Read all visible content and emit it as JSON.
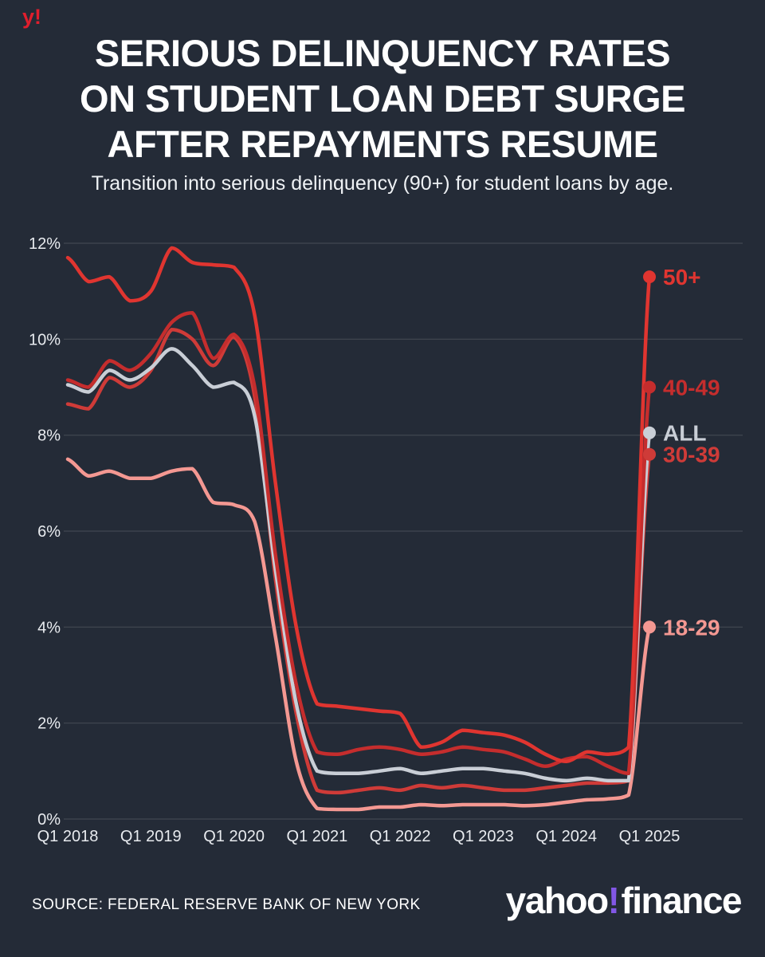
{
  "page": {
    "background": "#242b37",
    "top_logo": "y!",
    "top_logo_color": "#e01e2d",
    "title_lines": [
      "SERIOUS DELINQUENCY RATES",
      "ON STUDENT LOAN DEBT SURGE",
      "AFTER REPAYMENTS RESUME"
    ],
    "subtitle": "Transition into serious delinquency (90+) for student loans by age.",
    "source": "SOURCE: FEDERAL RESERVE BANK OF NEW YORK",
    "brand": {
      "yahoo": "yahoo",
      "bang": "!",
      "finance": "finance",
      "bang_color": "#8257e6"
    }
  },
  "chart_data": {
    "type": "line",
    "title": "Transition into serious delinquency (90+) for student loans by age.",
    "unit": "%",
    "frequency": "quarterly",
    "x_range": [
      "Q1 2018",
      "Q1 2025"
    ],
    "ylim": [
      0,
      12
    ],
    "grid": true,
    "legend_position": "right-of-line-ends",
    "y_ticks": {
      "values": [
        0,
        2,
        4,
        6,
        8,
        10,
        12
      ],
      "labels": [
        "0%",
        "2%",
        "4%",
        "6%",
        "8%",
        "10%",
        "12%"
      ]
    },
    "x_ticks": {
      "indices": [
        0,
        4,
        8,
        12,
        16,
        20,
        24,
        28
      ],
      "labels": [
        "Q1 2018",
        "Q1 2019",
        "Q1 2020",
        "Q1 2021",
        "Q1 2022",
        "Q1 2023",
        "Q1 2024",
        "Q1 2025"
      ]
    },
    "series": [
      {
        "name": "50+",
        "color": "#e03530",
        "values": [
          11.7,
          11.2,
          11.3,
          10.8,
          11.0,
          11.9,
          11.6,
          11.55,
          11.5,
          10.5,
          7.0,
          4.0,
          2.4,
          2.35,
          2.3,
          2.25,
          2.2,
          1.5,
          1.6,
          1.85,
          1.8,
          1.75,
          1.6,
          1.35,
          1.2,
          1.4,
          1.35,
          1.5,
          11.3
        ]
      },
      {
        "name": "40-49",
        "color": "#c52d2d",
        "values": [
          9.15,
          9.0,
          9.55,
          9.35,
          9.7,
          10.35,
          10.55,
          9.6,
          10.1,
          9.0,
          5.5,
          2.8,
          1.4,
          1.35,
          1.45,
          1.5,
          1.45,
          1.35,
          1.4,
          1.5,
          1.45,
          1.4,
          1.25,
          1.1,
          1.25,
          1.3,
          1.1,
          0.95,
          9.0
        ]
      },
      {
        "name": "ALL",
        "color": "#c9ced6",
        "values": [
          9.05,
          8.9,
          9.35,
          9.15,
          9.4,
          9.8,
          9.45,
          9.0,
          9.1,
          8.4,
          5.2,
          2.4,
          1.0,
          0.95,
          0.95,
          1.0,
          1.05,
          0.95,
          1.0,
          1.05,
          1.05,
          1.0,
          0.95,
          0.85,
          0.8,
          0.85,
          0.8,
          0.8,
          8.05
        ]
      },
      {
        "name": "30-39",
        "color": "#cf3b38",
        "values": [
          8.65,
          8.55,
          9.2,
          9.0,
          9.35,
          10.2,
          10.0,
          9.45,
          10.05,
          8.8,
          5.0,
          2.2,
          0.6,
          0.55,
          0.6,
          0.65,
          0.6,
          0.7,
          0.65,
          0.7,
          0.65,
          0.6,
          0.6,
          0.65,
          0.7,
          0.75,
          0.75,
          0.8,
          7.6
        ]
      },
      {
        "name": "18-29",
        "color": "#f49892",
        "values": [
          7.5,
          7.15,
          7.25,
          7.1,
          7.1,
          7.25,
          7.3,
          6.6,
          6.55,
          6.2,
          3.8,
          1.2,
          0.22,
          0.2,
          0.2,
          0.25,
          0.25,
          0.3,
          0.28,
          0.3,
          0.3,
          0.3,
          0.28,
          0.3,
          0.35,
          0.4,
          0.42,
          0.5,
          4.0
        ]
      }
    ]
  }
}
